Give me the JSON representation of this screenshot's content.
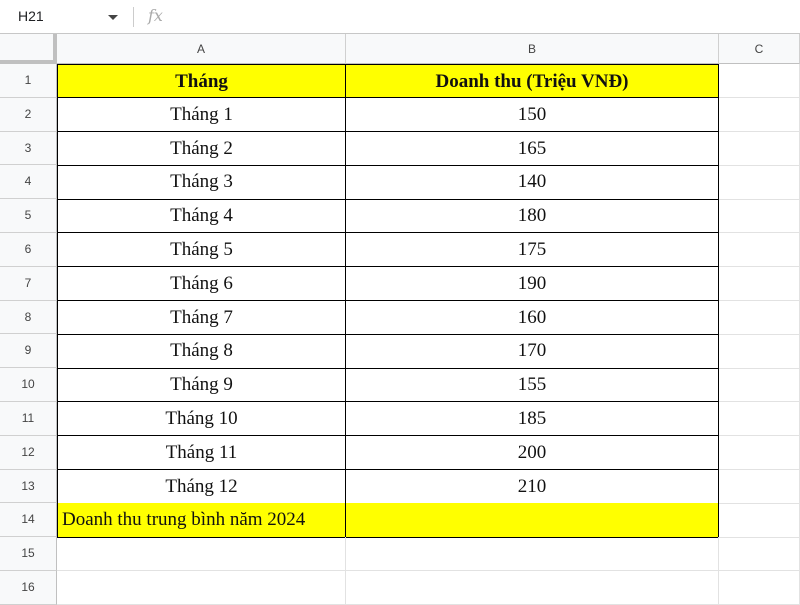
{
  "formula_bar": {
    "name_box": "H21",
    "fx_icon": "fx"
  },
  "columns": [
    "A",
    "B",
    "C"
  ],
  "rows": [
    "1",
    "2",
    "3",
    "4",
    "5",
    "6",
    "7",
    "8",
    "9",
    "10",
    "11",
    "12",
    "13",
    "14",
    "15",
    "16"
  ],
  "table": {
    "headers": [
      "Tháng",
      "Doanh thu (Triệu VNĐ)"
    ],
    "data": [
      [
        "Tháng 1",
        "150"
      ],
      [
        "Tháng 2",
        "165"
      ],
      [
        "Tháng 3",
        "140"
      ],
      [
        "Tháng 4",
        "180"
      ],
      [
        "Tháng 5",
        "175"
      ],
      [
        "Tháng 6",
        "190"
      ],
      [
        "Tháng 7",
        "160"
      ],
      [
        "Tháng 8",
        "170"
      ],
      [
        "Tháng 9",
        "155"
      ],
      [
        "Tháng 10",
        "185"
      ],
      [
        "Tháng 11",
        "200"
      ],
      [
        "Tháng 12",
        "210"
      ]
    ],
    "summary_label": "Doanh thu trung bình năm 2024",
    "summary_value": ""
  },
  "colors": {
    "highlight": "#ffff00"
  }
}
